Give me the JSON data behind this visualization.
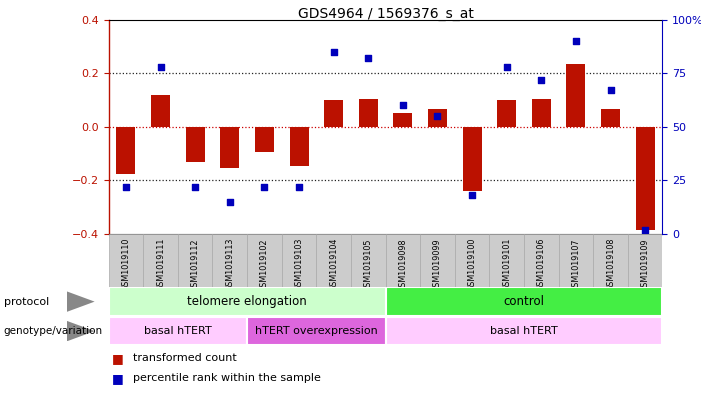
{
  "title": "GDS4964 / 1569376_s_at",
  "samples": [
    "GSM1019110",
    "GSM1019111",
    "GSM1019112",
    "GSM1019113",
    "GSM1019102",
    "GSM1019103",
    "GSM1019104",
    "GSM1019105",
    "GSM1019098",
    "GSM1019099",
    "GSM1019100",
    "GSM1019101",
    "GSM1019106",
    "GSM1019107",
    "GSM1019108",
    "GSM1019109"
  ],
  "transformed_count": [
    -0.175,
    0.12,
    -0.13,
    -0.155,
    -0.095,
    -0.145,
    0.1,
    0.105,
    0.05,
    0.065,
    -0.24,
    0.1,
    0.105,
    0.235,
    0.065,
    -0.385
  ],
  "percentile_rank": [
    22,
    78,
    22,
    15,
    22,
    22,
    85,
    82,
    60,
    55,
    18,
    78,
    72,
    90,
    67,
    2
  ],
  "ylim_left": [
    -0.4,
    0.4
  ],
  "ylim_right": [
    0,
    100
  ],
  "yticks_left": [
    -0.4,
    -0.2,
    0.0,
    0.2,
    0.4
  ],
  "yticks_right": [
    0,
    25,
    50,
    75,
    100
  ],
  "bar_color": "#bb1100",
  "dot_color": "#0000bb",
  "hline_color": "#cc0000",
  "dotted_color": "#222222",
  "protocol_labels": [
    {
      "text": "telomere elongation",
      "start": 0,
      "end": 7,
      "color": "#ccffcc"
    },
    {
      "text": "control",
      "start": 8,
      "end": 15,
      "color": "#44ee44"
    }
  ],
  "genotype_labels": [
    {
      "text": "basal hTERT",
      "start": 0,
      "end": 3,
      "color": "#ffccff"
    },
    {
      "text": "hTERT overexpression",
      "start": 4,
      "end": 7,
      "color": "#dd66dd"
    },
    {
      "text": "basal hTERT",
      "start": 8,
      "end": 15,
      "color": "#ffccff"
    }
  ],
  "background_color": "#ffffff",
  "plot_bg": "#ffffff",
  "sample_box_color": "#cccccc",
  "sample_box_edge": "#888888"
}
